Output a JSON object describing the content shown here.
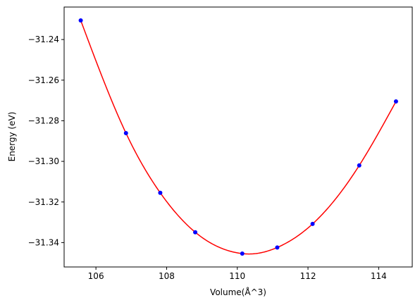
{
  "chart_data": {
    "type": "scatter",
    "title": "",
    "xlabel": "Volume(Å^3)",
    "ylabel": "Energy (eV)",
    "xlim": [
      105.1,
      114.95
    ],
    "ylim": [
      -31.352,
      -31.224
    ],
    "xticks": [
      106,
      108,
      110,
      112,
      114
    ],
    "xtick_labels": [
      "106",
      "108",
      "110",
      "112",
      "114"
    ],
    "yticks": [
      -31.24,
      -31.26,
      -31.28,
      -31.3,
      -31.32,
      -31.34
    ],
    "ytick_labels": [
      "−31.24",
      "−31.26",
      "−31.28",
      "−31.30",
      "−31.32",
      "−31.34"
    ],
    "grid": false,
    "legend": "none",
    "series": [
      {
        "kind": "points",
        "color": "#0000ff",
        "x": [
          105.57,
          106.85,
          107.82,
          108.81,
          110.14,
          111.13,
          112.13,
          113.45,
          114.49
        ],
        "y": [
          -31.2306,
          -31.2861,
          -31.3155,
          -31.3349,
          -31.3454,
          -31.3424,
          -31.3308,
          -31.302,
          -31.2705
        ]
      },
      {
        "kind": "fit-line",
        "color": "#ff0000",
        "x": [
          105.57,
          106.85,
          107.82,
          108.81,
          110.14,
          110.3,
          111.13,
          112.13,
          113.45,
          114.49
        ],
        "y": [
          -31.2306,
          -31.2861,
          -31.3155,
          -31.3349,
          -31.3454,
          -31.3456,
          -31.3424,
          -31.3308,
          -31.302,
          -31.2705
        ]
      }
    ]
  }
}
